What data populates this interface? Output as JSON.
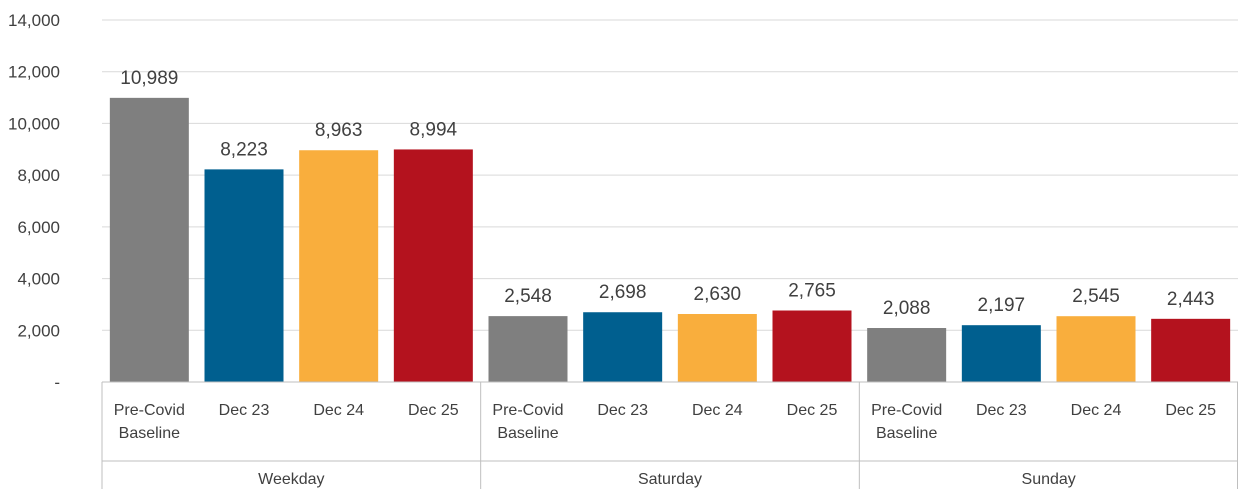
{
  "chart_data": {
    "type": "bar",
    "title": "",
    "xlabel": "",
    "ylabel": "",
    "ylim": [
      0,
      14000
    ],
    "yticks": [
      0,
      2000,
      4000,
      6000,
      8000,
      10000,
      12000,
      14000
    ],
    "ytick_labels": [
      "-",
      "2,000",
      "4,000",
      "6,000",
      "8,000",
      "10,000",
      "12,000",
      "14,000"
    ],
    "grid": true,
    "legend": "none",
    "bar_colors": {
      "Pre-Covid Baseline": "#7f7f7f",
      "Dec 23": "#005f8f",
      "Dec 24": "#f9ae3d",
      "Dec 25": "#b4121e"
    },
    "groups": [
      {
        "name": "Weekday",
        "bars": [
          {
            "label": [
              "Pre-Covid",
              "Baseline"
            ],
            "key": "Pre-Covid Baseline",
            "value": 10989,
            "value_label": "10,989"
          },
          {
            "label": [
              "Dec 23"
            ],
            "key": "Dec 23",
            "value": 8223,
            "value_label": "8,223"
          },
          {
            "label": [
              "Dec 24"
            ],
            "key": "Dec 24",
            "value": 8963,
            "value_label": "8,963"
          },
          {
            "label": [
              "Dec 25"
            ],
            "key": "Dec 25",
            "value": 8994,
            "value_label": "8,994"
          }
        ]
      },
      {
        "name": "Saturday",
        "bars": [
          {
            "label": [
              "Pre-Covid",
              "Baseline"
            ],
            "key": "Pre-Covid Baseline",
            "value": 2548,
            "value_label": "2,548"
          },
          {
            "label": [
              "Dec 23"
            ],
            "key": "Dec 23",
            "value": 2698,
            "value_label": "2,698"
          },
          {
            "label": [
              "Dec 24"
            ],
            "key": "Dec 24",
            "value": 2630,
            "value_label": "2,630"
          },
          {
            "label": [
              "Dec 25"
            ],
            "key": "Dec 25",
            "value": 2765,
            "value_label": "2,765"
          }
        ]
      },
      {
        "name": "Sunday",
        "bars": [
          {
            "label": [
              "Pre-Covid",
              "Baseline"
            ],
            "key": "Pre-Covid Baseline",
            "value": 2088,
            "value_label": "2,088"
          },
          {
            "label": [
              "Dec 23"
            ],
            "key": "Dec 23",
            "value": 2197,
            "value_label": "2,197"
          },
          {
            "label": [
              "Dec 24"
            ],
            "key": "Dec 24",
            "value": 2545,
            "value_label": "2,545"
          },
          {
            "label": [
              "Dec 25"
            ],
            "key": "Dec 25",
            "value": 2443,
            "value_label": "2,443"
          }
        ]
      }
    ]
  }
}
